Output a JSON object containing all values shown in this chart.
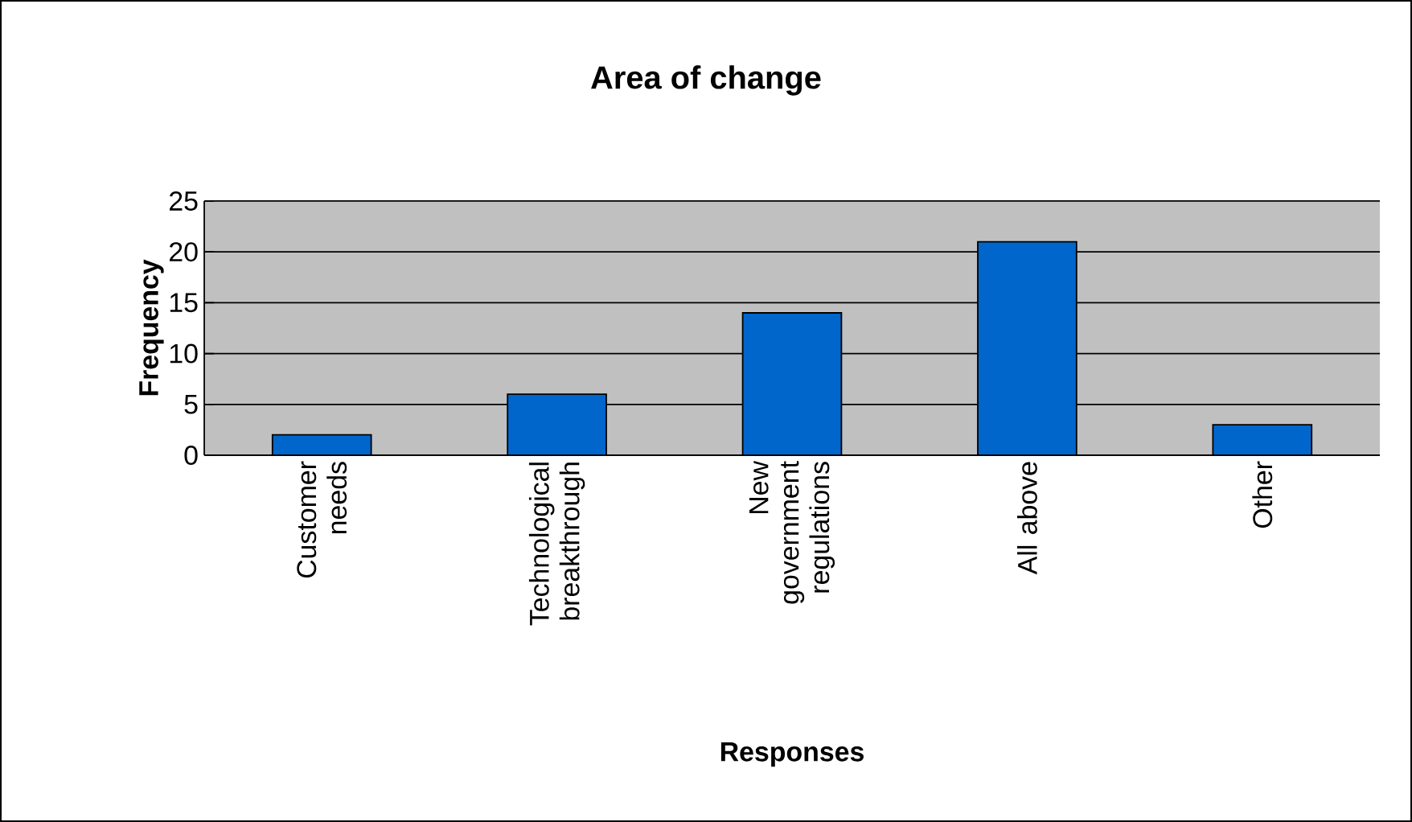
{
  "chart_data": {
    "type": "bar",
    "title": "Area of  change",
    "xlabel": "Responses",
    "ylabel": "Frequency",
    "categories": [
      "Customer needs",
      "Technological breakthrough",
      "New government regulations",
      "All above",
      "Other"
    ],
    "values": [
      2,
      6,
      14,
      21,
      3
    ],
    "color": "#0066cc",
    "ylim": [
      0,
      25
    ],
    "yticks": [
      0,
      5,
      10,
      15,
      20,
      25
    ],
    "grid": "y"
  }
}
